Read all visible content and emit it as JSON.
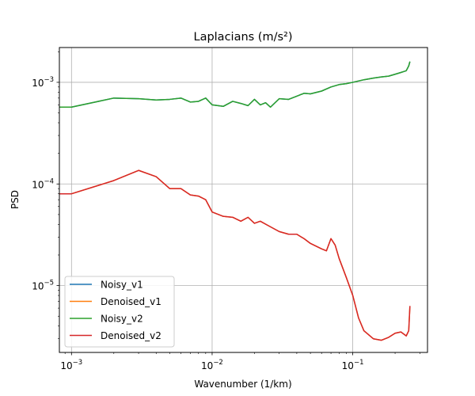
{
  "chart_data": {
    "type": "line",
    "title": "Laplacians (m/s²)",
    "xlabel": "Wavenumber (1/km)",
    "ylabel": "PSD",
    "xscale": "log",
    "yscale": "log",
    "xlim": [
      0.00082,
      0.34
    ],
    "ylim": [
      2.2e-06,
      0.0022
    ],
    "grid": true,
    "legend_position": "lower-left",
    "x_ticks": [
      {
        "value": 0.001,
        "base": "10",
        "exp": "−3"
      },
      {
        "value": 0.01,
        "base": "10",
        "exp": "−2"
      },
      {
        "value": 0.1,
        "base": "10",
        "exp": "−1"
      }
    ],
    "y_ticks": [
      {
        "value": 1e-05,
        "base": "10",
        "exp": "−5"
      },
      {
        "value": 0.0001,
        "base": "10",
        "exp": "−4"
      },
      {
        "value": 0.001,
        "base": "10",
        "exp": "−3"
      }
    ],
    "series": [
      {
        "name": "Noisy_v1",
        "color": "#1f77b4",
        "x": [
          0.0008,
          0.001,
          0.002,
          0.003,
          0.004,
          0.005,
          0.006,
          0.007,
          0.008,
          0.009,
          0.01,
          0.012,
          0.014,
          0.016,
          0.018,
          0.02,
          0.022,
          0.024,
          0.026,
          0.03,
          0.035,
          0.04,
          0.045,
          0.05,
          0.06,
          0.07,
          0.08,
          0.09,
          0.1,
          0.12,
          0.14,
          0.16,
          0.18,
          0.2,
          0.22,
          0.24,
          0.25,
          0.255
        ],
        "y": [
          0.00057,
          0.00057,
          0.0007,
          0.00069,
          0.00067,
          0.00068,
          0.0007,
          0.00064,
          0.00065,
          0.0007,
          0.0006,
          0.00058,
          0.00065,
          0.00062,
          0.00059,
          0.00068,
          0.0006,
          0.00063,
          0.00057,
          0.00069,
          0.00068,
          0.00073,
          0.00078,
          0.00077,
          0.00082,
          0.0009,
          0.00095,
          0.00097,
          0.001,
          0.00106,
          0.0011,
          0.00113,
          0.00115,
          0.0012,
          0.00125,
          0.0013,
          0.00145,
          0.0016
        ]
      },
      {
        "name": "Denoised_v1",
        "color": "#ff7f0e",
        "x": [
          0.0008,
          0.001,
          0.002,
          0.003,
          0.004,
          0.005,
          0.006,
          0.007,
          0.008,
          0.009,
          0.01,
          0.012,
          0.014,
          0.016,
          0.018,
          0.02,
          0.022,
          0.025,
          0.03,
          0.035,
          0.04,
          0.045,
          0.05,
          0.06,
          0.065,
          0.07,
          0.075,
          0.08,
          0.09,
          0.1,
          0.11,
          0.12,
          0.14,
          0.16,
          0.18,
          0.2,
          0.22,
          0.24,
          0.25,
          0.255
        ],
        "y": [
          8e-05,
          8e-05,
          0.000108,
          0.000136,
          0.000118,
          9e-05,
          9e-05,
          7.8e-05,
          7.6e-05,
          7e-05,
          5.3e-05,
          4.8e-05,
          4.7e-05,
          4.3e-05,
          4.7e-05,
          4.1e-05,
          4.3e-05,
          3.9e-05,
          3.4e-05,
          3.2e-05,
          3.2e-05,
          2.9e-05,
          2.6e-05,
          2.3e-05,
          2.2e-05,
          2.9e-05,
          2.5e-05,
          1.85e-05,
          1.2e-05,
          8e-06,
          4.8e-06,
          3.6e-06,
          3e-06,
          2.9e-06,
          3.1e-06,
          3.4e-06,
          3.5e-06,
          3.2e-06,
          3.6e-06,
          6.3e-06
        ]
      },
      {
        "name": "Noisy_v2",
        "color": "#2ca02c",
        "x": [
          0.0008,
          0.001,
          0.002,
          0.003,
          0.004,
          0.005,
          0.006,
          0.007,
          0.008,
          0.009,
          0.01,
          0.012,
          0.014,
          0.016,
          0.018,
          0.02,
          0.022,
          0.024,
          0.026,
          0.03,
          0.035,
          0.04,
          0.045,
          0.05,
          0.06,
          0.07,
          0.08,
          0.09,
          0.1,
          0.12,
          0.14,
          0.16,
          0.18,
          0.2,
          0.22,
          0.24,
          0.25,
          0.255
        ],
        "y": [
          0.00057,
          0.00057,
          0.0007,
          0.00069,
          0.00067,
          0.00068,
          0.0007,
          0.00064,
          0.00065,
          0.0007,
          0.0006,
          0.00058,
          0.00065,
          0.00062,
          0.00059,
          0.00068,
          0.0006,
          0.00063,
          0.00057,
          0.00069,
          0.00068,
          0.00073,
          0.00078,
          0.00077,
          0.00082,
          0.0009,
          0.00095,
          0.00097,
          0.001,
          0.00106,
          0.0011,
          0.00113,
          0.00115,
          0.0012,
          0.00125,
          0.0013,
          0.00145,
          0.0016
        ]
      },
      {
        "name": "Denoised_v2",
        "color": "#d62728",
        "x": [
          0.0008,
          0.001,
          0.002,
          0.003,
          0.004,
          0.005,
          0.006,
          0.007,
          0.008,
          0.009,
          0.01,
          0.012,
          0.014,
          0.016,
          0.018,
          0.02,
          0.022,
          0.025,
          0.03,
          0.035,
          0.04,
          0.045,
          0.05,
          0.06,
          0.065,
          0.07,
          0.075,
          0.08,
          0.09,
          0.1,
          0.11,
          0.12,
          0.14,
          0.16,
          0.18,
          0.2,
          0.22,
          0.24,
          0.25,
          0.255
        ],
        "y": [
          8e-05,
          8e-05,
          0.000108,
          0.000136,
          0.000118,
          9e-05,
          9e-05,
          7.8e-05,
          7.6e-05,
          7e-05,
          5.3e-05,
          4.8e-05,
          4.7e-05,
          4.3e-05,
          4.7e-05,
          4.1e-05,
          4.3e-05,
          3.9e-05,
          3.4e-05,
          3.2e-05,
          3.2e-05,
          2.9e-05,
          2.6e-05,
          2.3e-05,
          2.2e-05,
          2.9e-05,
          2.5e-05,
          1.85e-05,
          1.2e-05,
          8e-06,
          4.8e-06,
          3.6e-06,
          3e-06,
          2.9e-06,
          3.1e-06,
          3.4e-06,
          3.5e-06,
          3.2e-06,
          3.6e-06,
          6.3e-06
        ]
      }
    ]
  }
}
